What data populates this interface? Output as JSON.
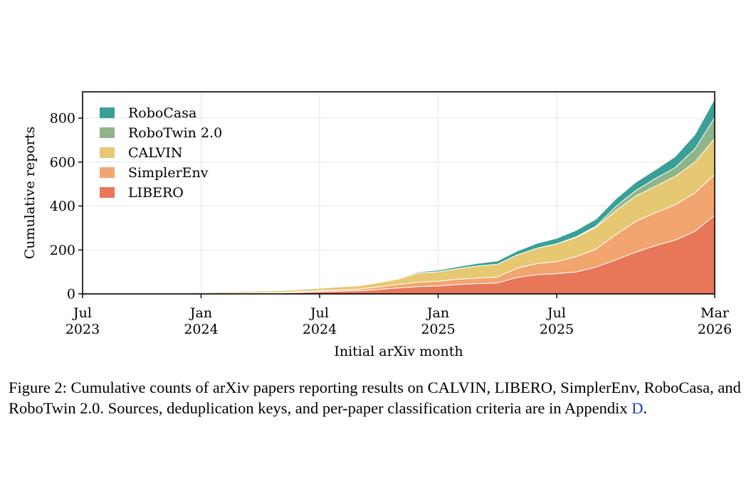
{
  "chart_data": {
    "type": "area",
    "stacked": true,
    "xlabel": "Initial arXiv month",
    "ylabel": "Cumulative reports",
    "ylim": [
      0,
      920
    ],
    "yticks": [
      0,
      200,
      400,
      600,
      800
    ],
    "xlim": [
      "2023-07",
      "2026-03"
    ],
    "xticks": [
      {
        "x": "2023-07",
        "label": [
          "Jul",
          "2023"
        ]
      },
      {
        "x": "2024-01",
        "label": [
          "Jan",
          "2024"
        ]
      },
      {
        "x": "2024-07",
        "label": [
          "Jul",
          "2024"
        ]
      },
      {
        "x": "2025-01",
        "label": [
          "Jan",
          "2025"
        ]
      },
      {
        "x": "2025-07",
        "label": [
          "Jul",
          "2025"
        ]
      },
      {
        "x": "2026-03",
        "label": [
          "Mar",
          "2026"
        ]
      }
    ],
    "grid": true,
    "legend_position": "top-left",
    "x": [
      "2023-07",
      "2023-08",
      "2023-09",
      "2023-10",
      "2023-11",
      "2023-12",
      "2024-01",
      "2024-02",
      "2024-03",
      "2024-04",
      "2024-05",
      "2024-06",
      "2024-07",
      "2024-08",
      "2024-09",
      "2024-10",
      "2024-11",
      "2024-12",
      "2025-01",
      "2025-02",
      "2025-03",
      "2025-04",
      "2025-05",
      "2025-06",
      "2025-07",
      "2025-08",
      "2025-09",
      "2025-10",
      "2025-11",
      "2025-12",
      "2026-01",
      "2026-02",
      "2026-03"
    ],
    "series": [
      {
        "name": "LIBERO",
        "color": "#e8775a",
        "values": [
          0,
          0,
          0,
          0,
          0,
          0,
          0,
          1,
          2,
          3,
          4,
          7,
          10,
          12,
          14,
          20,
          27,
          33,
          36,
          43,
          47,
          50,
          75,
          88,
          92,
          100,
          122,
          155,
          190,
          220,
          245,
          285,
          358
        ]
      },
      {
        "name": "SimplerEnv",
        "color": "#f2a56e",
        "values": [
          0,
          0,
          0,
          0,
          0,
          0,
          0,
          1,
          2,
          2,
          2,
          3,
          4,
          6,
          8,
          12,
          16,
          20,
          22,
          24,
          25,
          27,
          42,
          50,
          55,
          70,
          82,
          115,
          140,
          150,
          160,
          175,
          185
        ]
      },
      {
        "name": "CALVIN",
        "color": "#e7c872",
        "values": [
          0,
          0,
          0,
          1,
          3,
          4,
          5,
          6,
          7,
          8,
          9,
          10,
          12,
          14,
          15,
          20,
          25,
          42,
          43,
          48,
          55,
          58,
          60,
          70,
          80,
          88,
          100,
          110,
          115,
          120,
          130,
          140,
          165
        ]
      },
      {
        "name": "RoboTwin 2.0",
        "color": "#8fb489",
        "values": [
          0,
          0,
          0,
          0,
          0,
          0,
          0,
          0,
          0,
          0,
          0,
          0,
          0,
          0,
          0,
          0,
          0,
          0,
          0,
          0,
          0,
          0,
          0,
          0,
          1,
          2,
          5,
          18,
          25,
          35,
          40,
          60,
          95
        ]
      },
      {
        "name": "RoboCasa",
        "color": "#3aa097",
        "values": [
          0,
          0,
          0,
          0,
          0,
          0,
          0,
          0,
          0,
          0,
          0,
          0,
          0,
          0,
          0,
          2,
          3,
          5,
          7,
          9,
          12,
          15,
          18,
          22,
          25,
          30,
          32,
          35,
          38,
          40,
          50,
          65,
          85
        ]
      }
    ]
  },
  "caption": {
    "text_before_link": "Figure 2: Cumulative counts of arXiv papers reporting results on CALVIN, LIBERO, SimplerEnv, RoboCasa, and RoboTwin 2.0. Sources, deduplication keys, and per-paper classification criteria are in Appendix ",
    "link_text": "D",
    "text_after_link": "."
  }
}
